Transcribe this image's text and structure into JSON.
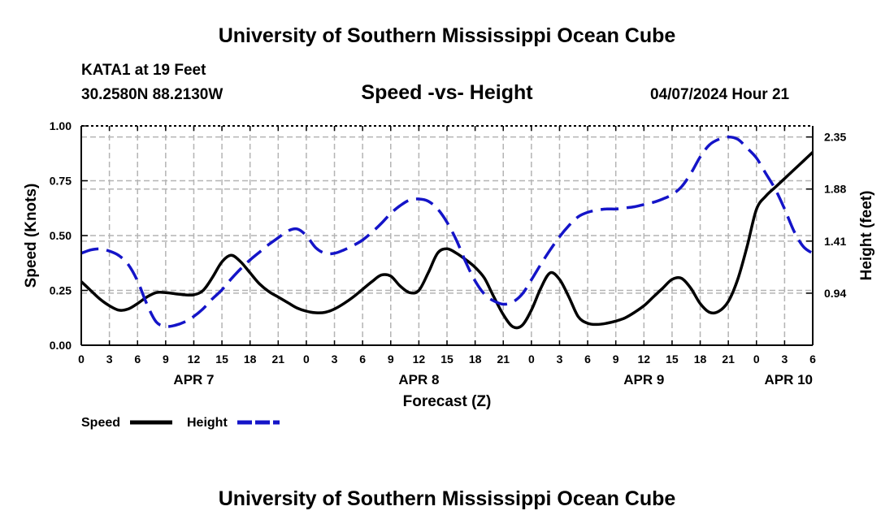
{
  "header": {
    "title": "University of Southern Mississippi Ocean Cube",
    "station": "KATA1 at 19 Feet",
    "coords": "30.2580N  88.2130W",
    "subtitle": "Speed -vs- Height",
    "datetime": "04/07/2024 Hour 21"
  },
  "footer": {
    "title": "University of Southern Mississippi Ocean Cube"
  },
  "chart_data": {
    "type": "line",
    "title": "Speed -vs- Height",
    "xlabel": "Forecast (Z)",
    "ylabel": "Speed (Knots)",
    "y2label": "Height (feet)",
    "x_range": [
      0,
      78
    ],
    "ylim": [
      0,
      1.0
    ],
    "y2lim": [
      0.47,
      2.45
    ],
    "grid": true,
    "x_ticks": [
      0,
      3,
      6,
      9,
      12,
      15,
      18,
      21,
      24,
      27,
      30,
      33,
      36,
      39,
      42,
      45,
      48,
      51,
      54,
      57,
      60,
      63,
      66,
      69,
      72,
      75,
      78
    ],
    "x_tick_labels": [
      "0",
      "3",
      "6",
      "9",
      "12",
      "15",
      "18",
      "21",
      "0",
      "3",
      "6",
      "9",
      "12",
      "15",
      "18",
      "21",
      "0",
      "3",
      "6",
      "9",
      "12",
      "15",
      "18",
      "21",
      "0",
      "3",
      "6"
    ],
    "day_labels": [
      {
        "x": 12,
        "label": "APR 7"
      },
      {
        "x": 36,
        "label": "APR 8"
      },
      {
        "x": 60,
        "label": "APR 9"
      },
      {
        "x": 78,
        "label": "APR 10"
      }
    ],
    "y_ticks": [
      0.0,
      0.25,
      0.5,
      0.75,
      1.0
    ],
    "y_tick_labels": [
      "0.00",
      "0.25",
      "0.50",
      "0.75",
      "1.00"
    ],
    "y2_ticks": [
      0.94,
      1.41,
      1.88,
      2.35
    ],
    "y2_tick_labels": [
      "0.94",
      "1.41",
      "1.88",
      "2.35"
    ],
    "legend": [
      "Speed",
      "Height"
    ],
    "colors": {
      "speed": "#000000",
      "height": "#1414c8",
      "grid": "#b4b4b4"
    },
    "series": [
      {
        "name": "Speed",
        "axis": "left",
        "x": [
          0,
          1,
          2,
          3,
          4,
          5,
          6,
          7,
          8,
          9,
          10,
          11,
          12,
          13,
          14,
          15,
          16,
          17,
          18,
          19,
          20,
          21,
          22,
          23,
          24,
          25,
          26,
          27,
          28,
          29,
          30,
          31,
          32,
          33,
          34,
          35,
          36,
          37,
          38,
          39,
          40,
          41,
          42,
          43,
          44,
          45,
          46,
          47,
          48,
          49,
          50,
          51,
          52,
          53,
          54,
          55,
          56,
          57,
          58,
          59,
          60,
          61,
          62,
          63,
          64,
          65,
          66,
          67,
          68,
          69,
          70,
          71,
          72,
          73,
          74,
          75,
          76,
          77,
          78
        ],
        "values": [
          0.29,
          0.25,
          0.21,
          0.18,
          0.16,
          0.165,
          0.19,
          0.22,
          0.24,
          0.24,
          0.235,
          0.23,
          0.23,
          0.25,
          0.31,
          0.38,
          0.41,
          0.38,
          0.33,
          0.28,
          0.245,
          0.22,
          0.195,
          0.17,
          0.155,
          0.148,
          0.15,
          0.165,
          0.19,
          0.22,
          0.255,
          0.29,
          0.32,
          0.315,
          0.27,
          0.24,
          0.25,
          0.33,
          0.42,
          0.44,
          0.42,
          0.39,
          0.355,
          0.305,
          0.22,
          0.14,
          0.085,
          0.09,
          0.16,
          0.26,
          0.33,
          0.3,
          0.22,
          0.13,
          0.1,
          0.095,
          0.1,
          0.11,
          0.125,
          0.15,
          0.18,
          0.22,
          0.26,
          0.3,
          0.305,
          0.26,
          0.19,
          0.15,
          0.155,
          0.2,
          0.3,
          0.45,
          0.62,
          0.68,
          0.72,
          0.76,
          0.8,
          0.84,
          0.88
        ]
      },
      {
        "name": "Height",
        "axis": "right",
        "x": [
          0,
          1,
          2,
          3,
          4,
          5,
          6,
          7,
          8,
          9,
          10,
          11,
          12,
          13,
          14,
          15,
          16,
          17,
          18,
          19,
          20,
          21,
          22,
          23,
          24,
          25,
          26,
          27,
          28,
          29,
          30,
          31,
          32,
          33,
          34,
          35,
          36,
          37,
          38,
          39,
          40,
          41,
          42,
          43,
          44,
          45,
          46,
          47,
          48,
          49,
          50,
          51,
          52,
          53,
          54,
          55,
          56,
          57,
          58,
          59,
          60,
          61,
          62,
          63,
          64,
          65,
          66,
          67,
          68,
          69,
          70,
          71,
          72,
          73,
          74,
          75,
          76,
          77,
          78
        ],
        "values": [
          1.3,
          1.33,
          1.34,
          1.32,
          1.28,
          1.2,
          1.05,
          0.84,
          0.68,
          0.64,
          0.65,
          0.68,
          0.73,
          0.8,
          0.89,
          0.97,
          1.07,
          1.16,
          1.24,
          1.31,
          1.38,
          1.44,
          1.5,
          1.52,
          1.46,
          1.35,
          1.3,
          1.3,
          1.33,
          1.37,
          1.42,
          1.49,
          1.57,
          1.66,
          1.73,
          1.78,
          1.79,
          1.77,
          1.7,
          1.58,
          1.42,
          1.22,
          1.05,
          0.93,
          0.87,
          0.84,
          0.86,
          0.93,
          1.06,
          1.2,
          1.33,
          1.45,
          1.55,
          1.63,
          1.67,
          1.69,
          1.7,
          1.7,
          1.71,
          1.72,
          1.74,
          1.76,
          1.79,
          1.83,
          1.9,
          2.02,
          2.17,
          2.28,
          2.33,
          2.35,
          2.33,
          2.25,
          2.16,
          2.02,
          1.88,
          1.7,
          1.5,
          1.36,
          1.3
        ]
      }
    ]
  }
}
